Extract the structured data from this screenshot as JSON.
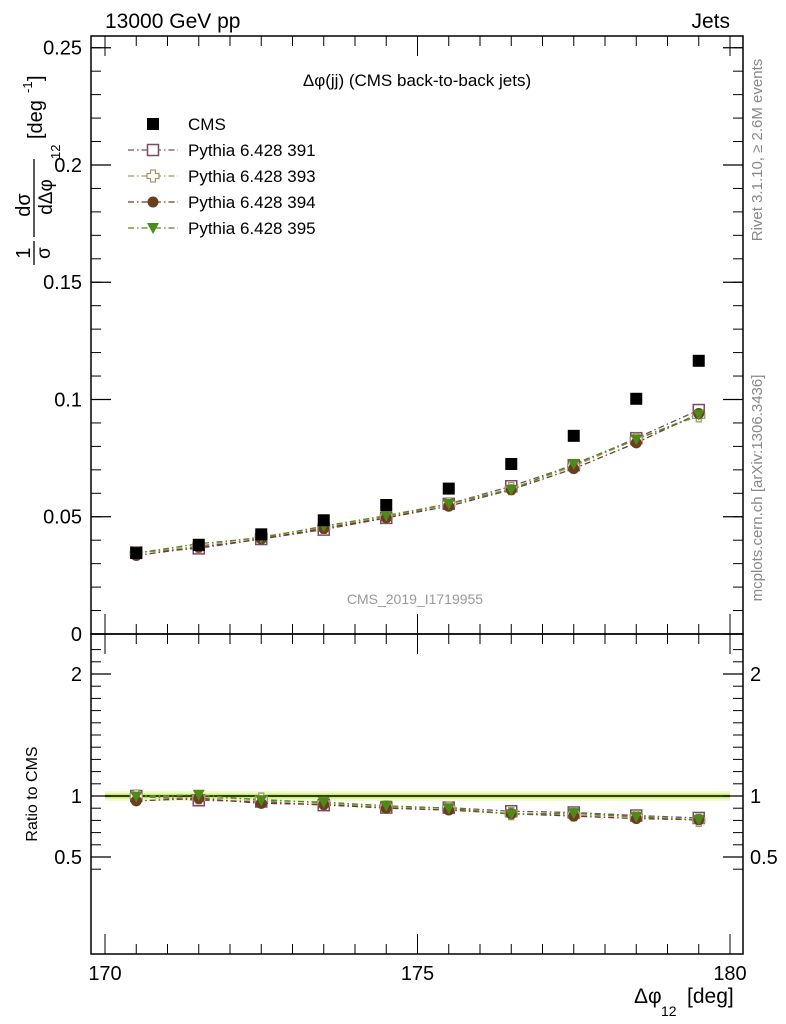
{
  "header": {
    "left": "13000 GeV pp",
    "right": "Jets"
  },
  "side_labels": {
    "rivet": "Rivet 3.1.10, ≥ 2.6M events",
    "source": "mcplots.cern.ch [arXiv:1306.3436]"
  },
  "colors": {
    "cms": "#000000",
    "p391": "#7b4b66",
    "p393": "#a8966a",
    "p394": "#6b3e1f",
    "p395": "#4d8a1a",
    "band_inner": "#c8f06e",
    "band_outer": "#f0fac8",
    "ref_line": "#000000"
  },
  "chart_data": [
    {
      "type": "scatter",
      "panel": "main",
      "title": "Δφ(jj) (CMS back-to-back jets)",
      "watermark": "CMS_2019_I1719955",
      "ylabel": "1/σ dσ/dΔφ_12 [deg^-1]",
      "ylim": [
        0,
        0.255
      ],
      "yticks": [
        "0",
        "0.05",
        "0.1",
        "0.15",
        "0.2",
        "0.25"
      ],
      "ytick_values": [
        0,
        0.05,
        0.1,
        0.15,
        0.2,
        0.25
      ],
      "x": [
        170.5,
        171.5,
        172.5,
        173.5,
        174.5,
        175.5,
        176.5,
        177.5,
        178.5,
        179.5
      ],
      "xlim": [
        170,
        180
      ],
      "legend_position": "top-left",
      "series": [
        {
          "name": "CMS",
          "marker": "filled-square",
          "line": "none",
          "values": [
            0.0345,
            0.038,
            0.0425,
            0.0485,
            0.055,
            0.062,
            0.0725,
            0.0845,
            0.1003,
            0.1165
          ]
        },
        {
          "name": "Pythia 6.428 391",
          "marker": "open-square",
          "line": "dash-dot",
          "values": [
            0.0348,
            0.0365,
            0.0405,
            0.0445,
            0.0495,
            0.0555,
            0.063,
            0.072,
            0.0835,
            0.0955
          ]
        },
        {
          "name": "Pythia 6.428 393",
          "marker": "open-cross",
          "line": "dash-dot",
          "values": [
            0.0345,
            0.0375,
            0.0415,
            0.0455,
            0.05,
            0.0555,
            0.062,
            0.0715,
            0.083,
            0.093
          ]
        },
        {
          "name": "Pythia 6.428 394",
          "marker": "filled-circle",
          "line": "dash-dot",
          "values": [
            0.0335,
            0.037,
            0.0405,
            0.045,
            0.0495,
            0.0545,
            0.0615,
            0.0705,
            0.0815,
            0.094
          ]
        },
        {
          "name": "Pythia 6.428 395",
          "marker": "filled-triangle-down",
          "line": "dash-dot",
          "values": [
            0.0345,
            0.0385,
            0.041,
            0.046,
            0.0505,
            0.0555,
            0.0615,
            0.0725,
            0.083,
            0.0935
          ]
        }
      ]
    },
    {
      "type": "line",
      "panel": "ratio",
      "ylabel": "Ratio to CMS",
      "xlabel": "Δφ_12 [deg]",
      "ylim": [
        0.35,
        2.3
      ],
      "yticks": [
        "0.5",
        "1",
        "2"
      ],
      "ytick_values": [
        0.5,
        1,
        2
      ],
      "xticks": [
        "170",
        "175",
        "180"
      ],
      "xtick_values": [
        170,
        175,
        180
      ],
      "x": [
        170.5,
        171.5,
        172.5,
        173.5,
        174.5,
        175.5,
        176.5,
        177.5,
        178.5,
        179.5
      ],
      "xlim": [
        170,
        180
      ],
      "reference": 1,
      "series": [
        {
          "name": "Pythia 6.428 391",
          "values": [
            1.0,
            0.965,
            0.955,
            0.925,
            0.905,
            0.905,
            0.875,
            0.865,
            0.84,
            0.82
          ]
        },
        {
          "name": "Pythia 6.428 393",
          "values": [
            1.0,
            0.985,
            0.975,
            0.94,
            0.91,
            0.9,
            0.855,
            0.845,
            0.83,
            0.8
          ]
        },
        {
          "name": "Pythia 6.428 394",
          "values": [
            0.96,
            0.98,
            0.94,
            0.93,
            0.9,
            0.885,
            0.855,
            0.835,
            0.815,
            0.805
          ]
        },
        {
          "name": "Pythia 6.428 395",
          "values": [
            0.995,
            1.01,
            0.965,
            0.95,
            0.92,
            0.9,
            0.85,
            0.86,
            0.83,
            0.805
          ]
        }
      ]
    }
  ]
}
